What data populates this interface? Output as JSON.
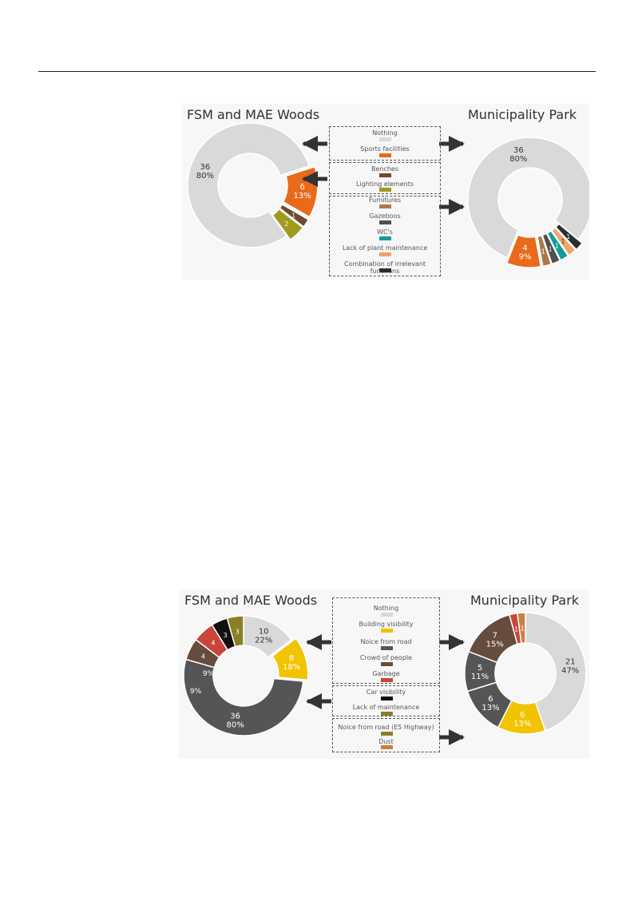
{
  "figures": [
    {
      "left_title": "FSM and MAE Woods",
      "right_title": "Municipality Park",
      "legend": [
        {
          "label": "Nothing",
          "color": "#d9d9d9"
        },
        {
          "label": "Sports facilities",
          "color": "#ea6a1c"
        },
        {
          "label": "Benches",
          "color": "#6b4a2e"
        },
        {
          "label": "Lighting elements",
          "color": "#a09a1e"
        },
        {
          "label": "Furnitures",
          "color": "#b07848"
        },
        {
          "label": "Gazeboos",
          "color": "#4f4f4f"
        },
        {
          "label": "WC's",
          "color": "#119c99"
        },
        {
          "label": "Lack of plant maintenance",
          "color": "#f0a46c"
        },
        {
          "label": "Combination of irrelevant functions",
          "color": "#2c2c2c"
        }
      ]
    },
    {
      "left_title": "FSM and MAE Woods",
      "right_title": "Municipality Park",
      "legend": [
        {
          "label": "Nothing",
          "color": "#d9d9d9"
        },
        {
          "label": "Building visibility",
          "color": "#f2c300"
        },
        {
          "label": "Noice from road",
          "color": "#555555"
        },
        {
          "label": "Crowd of people",
          "color": "#664c3c"
        },
        {
          "label": "Garbage",
          "color": "#c9453b"
        },
        {
          "label": "Car visibility",
          "color": "#111111"
        },
        {
          "label": "Lack of maintenance",
          "color": "#8a7f26"
        },
        {
          "label": "Noice from road (E5 Highway)",
          "color": "#8a7f26"
        },
        {
          "label": "Dust",
          "color": "#c8823e"
        }
      ]
    }
  ],
  "chart_data": [
    {
      "type": "pie",
      "title": "FSM and MAE Woods",
      "categories": [
        "Nothing",
        "Sports facilities",
        "Benches",
        "Lighting elements"
      ],
      "values": [
        36,
        6,
        1,
        2
      ],
      "labels": [
        "36\n80%",
        "6\n13%",
        "1",
        "2"
      ],
      "colors": [
        "#d9d9d9",
        "#ea6a1c",
        "#6b4a2e",
        "#a09a1e"
      ]
    },
    {
      "type": "pie",
      "title": "Municipality Park",
      "categories": [
        "Nothing",
        "Combination of irrelevant functions",
        "Lack of plant maintenance",
        "WC's",
        "Gazeboos",
        "Furnitures",
        "Sports facilities"
      ],
      "values": [
        36,
        1,
        1,
        1,
        1,
        1,
        4
      ],
      "labels": [
        "36\n80%",
        "1",
        "1",
        "1",
        "1",
        "1",
        "4\n9%"
      ],
      "colors": [
        "#d9d9d9",
        "#2c2c2c",
        "#f0a46c",
        "#119c99",
        "#4f4f4f",
        "#b07848",
        "#ea6a1c"
      ]
    },
    {
      "type": "pie",
      "title": "FSM and MAE Woods",
      "categories": [
        "Nothing",
        "Building visibility",
        "Noice from road",
        "Crowd of people",
        "Garbage",
        "Car visibility",
        "Lack of maintenance"
      ],
      "values": [
        10,
        8,
        36,
        4,
        4,
        3,
        3
      ],
      "labels": [
        "10\n22%",
        "8\n18%",
        "36\n80%",
        "4",
        "4",
        "3",
        "3"
      ],
      "side_labels": [
        "9%",
        "9%"
      ],
      "colors": [
        "#d9d9d9",
        "#f2c300",
        "#555555",
        "#664c3c",
        "#c9453b",
        "#111111",
        "#8a7f26"
      ]
    },
    {
      "type": "pie",
      "title": "Municipality Park",
      "categories": [
        "Nothing",
        "Building visibility",
        "Noice from road",
        "Noice from road (E5 Highway)",
        "Crowd of people",
        "Garbage",
        "Dust"
      ],
      "values": [
        21,
        6,
        6,
        5,
        7,
        1,
        1
      ],
      "labels": [
        "21\n47%",
        "6\n13%",
        "6\n13%",
        "5\n11%",
        "7\n15%",
        "1",
        "1"
      ],
      "colors": [
        "#d9d9d9",
        "#f2c300",
        "#555555",
        "#555555",
        "#664c3c",
        "#c9453b",
        "#c8823e"
      ]
    }
  ]
}
